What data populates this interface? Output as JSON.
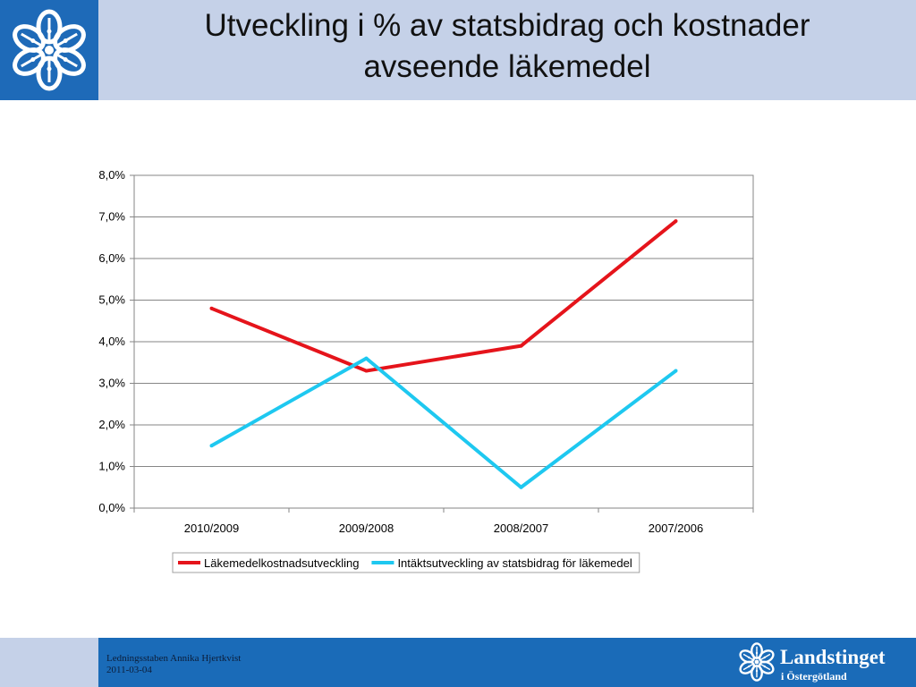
{
  "slide": {
    "title_lines": [
      "Utveckling i % av statsbidrag och kostnader",
      "avseende läkemedel"
    ],
    "footer_lines": [
      "Ledningsstaben Annika Hjertkvist",
      "2011-03-04"
    ],
    "brand_name": "Landstinget",
    "brand_sub": "i Östergötland",
    "logo_icon": "snowflake-flower-icon",
    "colors": {
      "header_band": "#c5d1e8",
      "logo_blue": "#1e6ab8",
      "footer_blue": "#1a6bb8"
    }
  },
  "chart_data": {
    "type": "line",
    "title": "",
    "xlabel": "",
    "ylabel": "",
    "categories": [
      "2010/2009",
      "2009/2008",
      "2008/2007",
      "2007/2006"
    ],
    "ylim": [
      0,
      8
    ],
    "y_ticks": [
      0,
      1,
      2,
      3,
      4,
      5,
      6,
      7,
      8
    ],
    "y_tick_labels": [
      "0,0%",
      "1,0%",
      "2,0%",
      "3,0%",
      "4,0%",
      "5,0%",
      "6,0%",
      "7,0%",
      "8,0%"
    ],
    "y_unit": "%",
    "grid": true,
    "legend_position": "bottom",
    "series": [
      {
        "name": "Läkemedelkostnadsutveckling",
        "color": "#e5141b",
        "values": [
          4.8,
          3.3,
          3.9,
          6.9
        ]
      },
      {
        "name": "Intäktsutveckling av statsbidrag för läkemedel",
        "color": "#1ec8f0",
        "values": [
          1.5,
          3.6,
          0.5,
          3.3
        ]
      }
    ]
  }
}
